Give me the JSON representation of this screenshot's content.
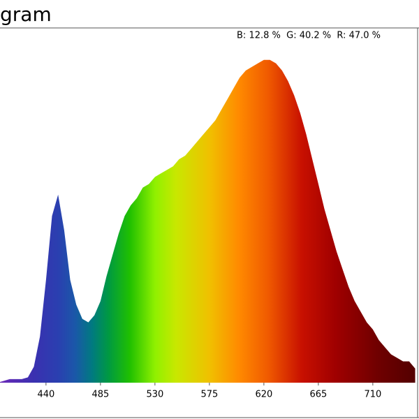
{
  "chart_data": {
    "type": "area",
    "title": "gram",
    "annotation": "B: 12.8 %  G: 40.2 %  R: 47.0 %",
    "xlim": [
      402,
      747
    ],
    "xticks": [
      440,
      485,
      530,
      575,
      620,
      665,
      710
    ],
    "ylim": [
      0,
      100
    ],
    "x": [
      400,
      410,
      420,
      425,
      430,
      435,
      440,
      445,
      450,
      455,
      460,
      465,
      470,
      475,
      480,
      485,
      490,
      495,
      500,
      505,
      510,
      515,
      520,
      525,
      530,
      535,
      540,
      545,
      550,
      555,
      560,
      565,
      570,
      575,
      580,
      585,
      590,
      595,
      600,
      605,
      610,
      615,
      620,
      625,
      630,
      635,
      640,
      645,
      650,
      655,
      660,
      665,
      670,
      675,
      680,
      685,
      690,
      695,
      700,
      705,
      710,
      715,
      720,
      725,
      730,
      735,
      740,
      745
    ],
    "values": [
      0,
      1,
      1,
      1.5,
      4.5,
      13,
      29,
      47,
      53,
      43,
      29,
      22,
      18,
      17,
      19,
      23,
      30,
      36,
      42,
      47,
      50,
      52,
      55,
      56,
      58,
      59,
      60,
      61,
      63,
      64,
      66,
      68,
      70,
      72,
      74,
      77,
      80,
      83,
      86,
      88,
      89,
      90,
      91,
      91,
      90,
      88,
      85,
      81,
      76,
      70,
      63,
      56,
      49,
      43,
      37,
      32,
      27,
      23,
      20,
      17,
      15,
      12,
      10,
      8,
      7,
      6,
      6,
      4
    ]
  }
}
